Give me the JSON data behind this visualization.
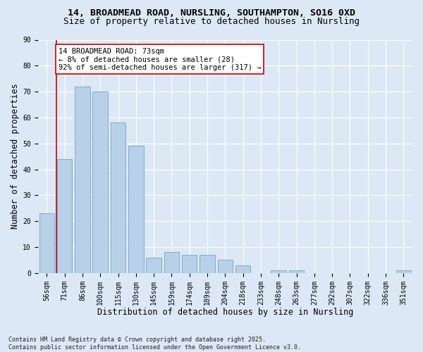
{
  "title_line1": "14, BROADMEAD ROAD, NURSLING, SOUTHAMPTON, SO16 0XD",
  "title_line2": "Size of property relative to detached houses in Nursling",
  "xlabel": "Distribution of detached houses by size in Nursling",
  "ylabel": "Number of detached properties",
  "categories": [
    "56sqm",
    "71sqm",
    "86sqm",
    "100sqm",
    "115sqm",
    "130sqm",
    "145sqm",
    "159sqm",
    "174sqm",
    "189sqm",
    "204sqm",
    "218sqm",
    "233sqm",
    "248sqm",
    "263sqm",
    "277sqm",
    "292sqm",
    "307sqm",
    "322sqm",
    "336sqm",
    "351sqm"
  ],
  "values": [
    23,
    44,
    72,
    70,
    58,
    49,
    6,
    8,
    7,
    7,
    5,
    3,
    0,
    1,
    1,
    0,
    0,
    0,
    0,
    0,
    1
  ],
  "bar_color": "#b8d0e8",
  "bar_edge_color": "#7aafc8",
  "marker_line_color": "#cc0000",
  "annotation_text": "14 BROADMEAD ROAD: 73sqm\n← 8% of detached houses are smaller (28)\n92% of semi-detached houses are larger (317) →",
  "annotation_box_color": "#ffffff",
  "annotation_box_edge": "#cc0000",
  "ylim": [
    0,
    90
  ],
  "yticks": [
    0,
    10,
    20,
    30,
    40,
    50,
    60,
    70,
    80,
    90
  ],
  "background_color": "#dce8f5",
  "plot_background": "#dce8f5",
  "grid_color": "#ffffff",
  "footer_text": "Contains HM Land Registry data © Crown copyright and database right 2025.\nContains public sector information licensed under the Open Government Licence v3.0.",
  "title_fontsize": 9.5,
  "subtitle_fontsize": 9,
  "axis_label_fontsize": 8.5,
  "tick_fontsize": 7,
  "annotation_fontsize": 7.5,
  "footer_fontsize": 6
}
